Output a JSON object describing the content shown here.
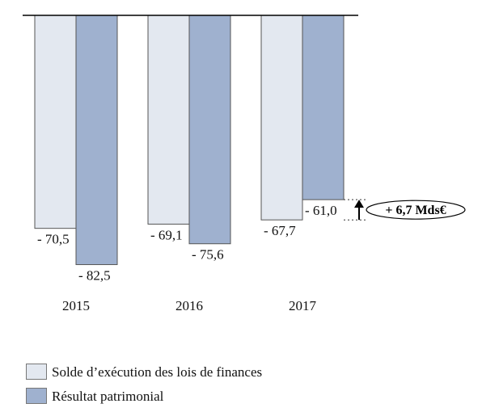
{
  "chart_data": {
    "type": "bar",
    "categories": [
      "2015",
      "2016",
      "2017"
    ],
    "series": [
      {
        "name": "Solde d’exécution des lois de finances",
        "values": [
          -70.5,
          -69.1,
          -67.7
        ],
        "labels": [
          "- 70,5",
          "- 69,1",
          "- 67,7"
        ],
        "color": "#e3e8f0"
      },
      {
        "name": "Résultat patrimonial",
        "values": [
          -82.5,
          -75.6,
          -61.0
        ],
        "labels": [
          "- 82,5",
          "- 75,6",
          "- 61,0"
        ],
        "color": "#9fb1cf"
      }
    ],
    "annotation": {
      "text": "+ 6,7 Mds€",
      "category": "2017",
      "from": -67.7,
      "to": -61.0
    },
    "ylim": [
      -100,
      0
    ],
    "grid": false,
    "legend_position": "bottom-left"
  }
}
